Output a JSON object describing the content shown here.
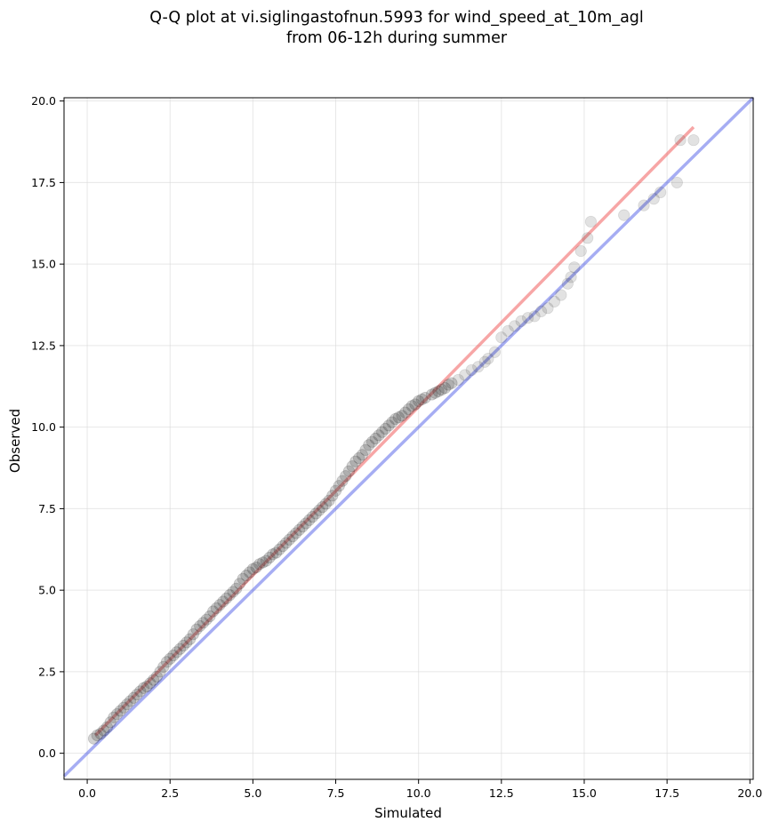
{
  "chart_data": {
    "type": "scatter",
    "title": "Q-Q plot at vi.siglingastofnun.5993 for wind_speed_at_10m_agl",
    "subtitle": "from 06-12h during summer",
    "xlabel": "Simulated",
    "ylabel": "Observed",
    "xlim": [
      -0.7,
      20.1
    ],
    "ylim": [
      -0.8,
      20.1
    ],
    "grid": true,
    "xticks": [
      {
        "value": 0.0,
        "label": "0.0"
      },
      {
        "value": 2.5,
        "label": "2.5"
      },
      {
        "value": 5.0,
        "label": "5.0"
      },
      {
        "value": 7.5,
        "label": "7.5"
      },
      {
        "value": 10.0,
        "label": "10.0"
      },
      {
        "value": 12.5,
        "label": "12.5"
      },
      {
        "value": 15.0,
        "label": "15.0"
      },
      {
        "value": 17.5,
        "label": "17.5"
      },
      {
        "value": 20.0,
        "label": "20.0"
      }
    ],
    "yticks": [
      {
        "value": 0.0,
        "label": "0.0"
      },
      {
        "value": 2.5,
        "label": "2.5"
      },
      {
        "value": 5.0,
        "label": "5.0"
      },
      {
        "value": 7.5,
        "label": "7.5"
      },
      {
        "value": 10.0,
        "label": "10.0"
      },
      {
        "value": 12.5,
        "label": "12.5"
      },
      {
        "value": 15.0,
        "label": "15.0"
      },
      {
        "value": 17.5,
        "label": "17.5"
      },
      {
        "value": 20.0,
        "label": "20.0"
      }
    ],
    "colors": {
      "points": "#303030",
      "identity_line": "#4f5ee8",
      "fit_line": "#ee3b3b",
      "grid": "#d8d8d8"
    },
    "identity_line": {
      "x": [
        -0.7,
        20.1
      ],
      "y": [
        -0.7,
        20.1
      ]
    },
    "fit_line": {
      "x": [
        0.25,
        18.3
      ],
      "y": [
        0.55,
        19.2
      ]
    },
    "series": [
      {
        "points": [
          [
            0.2,
            0.45
          ],
          [
            0.3,
            0.55
          ],
          [
            0.4,
            0.6
          ],
          [
            0.5,
            0.7
          ],
          [
            0.6,
            0.8
          ],
          [
            0.7,
            0.95
          ],
          [
            0.8,
            1.1
          ],
          [
            0.9,
            1.2
          ],
          [
            1.0,
            1.3
          ],
          [
            1.1,
            1.4
          ],
          [
            1.2,
            1.5
          ],
          [
            1.3,
            1.6
          ],
          [
            1.4,
            1.7
          ],
          [
            1.5,
            1.8
          ],
          [
            1.6,
            1.9
          ],
          [
            1.7,
            2.0
          ],
          [
            1.8,
            2.05
          ],
          [
            1.9,
            2.15
          ],
          [
            2.0,
            2.25
          ],
          [
            2.1,
            2.35
          ],
          [
            2.2,
            2.5
          ],
          [
            2.3,
            2.65
          ],
          [
            2.4,
            2.8
          ],
          [
            2.5,
            2.9
          ],
          [
            2.6,
            3.0
          ],
          [
            2.7,
            3.1
          ],
          [
            2.8,
            3.2
          ],
          [
            2.9,
            3.3
          ],
          [
            3.0,
            3.4
          ],
          [
            3.1,
            3.5
          ],
          [
            3.2,
            3.65
          ],
          [
            3.3,
            3.8
          ],
          [
            3.4,
            3.9
          ],
          [
            3.5,
            4.0
          ],
          [
            3.6,
            4.1
          ],
          [
            3.7,
            4.2
          ],
          [
            3.8,
            4.35
          ],
          [
            3.9,
            4.45
          ],
          [
            4.0,
            4.55
          ],
          [
            4.1,
            4.65
          ],
          [
            4.2,
            4.75
          ],
          [
            4.3,
            4.85
          ],
          [
            4.4,
            4.95
          ],
          [
            4.5,
            5.05
          ],
          [
            4.6,
            5.2
          ],
          [
            4.7,
            5.35
          ],
          [
            4.8,
            5.45
          ],
          [
            4.9,
            5.55
          ],
          [
            5.0,
            5.65
          ],
          [
            5.1,
            5.7
          ],
          [
            5.2,
            5.8
          ],
          [
            5.3,
            5.85
          ],
          [
            5.4,
            5.9
          ],
          [
            5.5,
            6.0
          ],
          [
            5.6,
            6.1
          ],
          [
            5.7,
            6.15
          ],
          [
            5.8,
            6.25
          ],
          [
            5.9,
            6.35
          ],
          [
            6.0,
            6.45
          ],
          [
            6.1,
            6.55
          ],
          [
            6.2,
            6.65
          ],
          [
            6.3,
            6.75
          ],
          [
            6.4,
            6.85
          ],
          [
            6.5,
            6.95
          ],
          [
            6.6,
            7.05
          ],
          [
            6.7,
            7.15
          ],
          [
            6.8,
            7.25
          ],
          [
            6.9,
            7.35
          ],
          [
            7.0,
            7.45
          ],
          [
            7.1,
            7.55
          ],
          [
            7.2,
            7.65
          ],
          [
            7.3,
            7.75
          ],
          [
            7.4,
            7.9
          ],
          [
            7.5,
            8.05
          ],
          [
            7.6,
            8.2
          ],
          [
            7.7,
            8.35
          ],
          [
            7.8,
            8.5
          ],
          [
            7.9,
            8.65
          ],
          [
            8.0,
            8.8
          ],
          [
            8.1,
            8.95
          ],
          [
            8.2,
            9.05
          ],
          [
            8.3,
            9.15
          ],
          [
            8.4,
            9.3
          ],
          [
            8.5,
            9.45
          ],
          [
            8.6,
            9.55
          ],
          [
            8.7,
            9.65
          ],
          [
            8.8,
            9.75
          ],
          [
            8.9,
            9.85
          ],
          [
            9.0,
            9.95
          ],
          [
            9.1,
            10.05
          ],
          [
            9.2,
            10.15
          ],
          [
            9.3,
            10.25
          ],
          [
            9.4,
            10.3
          ],
          [
            9.5,
            10.35
          ],
          [
            9.6,
            10.45
          ],
          [
            9.7,
            10.55
          ],
          [
            9.8,
            10.65
          ],
          [
            9.9,
            10.7
          ],
          [
            10.0,
            10.8
          ],
          [
            10.1,
            10.85
          ],
          [
            10.2,
            10.9
          ],
          [
            10.4,
            11.0
          ],
          [
            10.5,
            11.05
          ],
          [
            10.6,
            11.1
          ],
          [
            10.7,
            11.15
          ],
          [
            10.8,
            11.2
          ],
          [
            10.9,
            11.3
          ],
          [
            11.0,
            11.35
          ],
          [
            11.2,
            11.45
          ],
          [
            11.4,
            11.6
          ],
          [
            11.6,
            11.75
          ],
          [
            11.8,
            11.85
          ],
          [
            12.0,
            12.0
          ],
          [
            12.1,
            12.1
          ],
          [
            12.3,
            12.3
          ],
          [
            12.5,
            12.75
          ],
          [
            12.7,
            12.95
          ],
          [
            12.9,
            13.1
          ],
          [
            13.1,
            13.25
          ],
          [
            13.3,
            13.35
          ],
          [
            13.5,
            13.4
          ],
          [
            13.7,
            13.55
          ],
          [
            13.9,
            13.65
          ],
          [
            14.1,
            13.85
          ],
          [
            14.3,
            14.05
          ],
          [
            14.5,
            14.4
          ],
          [
            14.6,
            14.6
          ],
          [
            14.7,
            14.9
          ],
          [
            14.9,
            15.4
          ],
          [
            15.1,
            15.8
          ],
          [
            15.2,
            16.3
          ],
          [
            16.2,
            16.5
          ],
          [
            16.8,
            16.8
          ],
          [
            17.1,
            17.0
          ],
          [
            17.3,
            17.2
          ],
          [
            17.8,
            17.5
          ],
          [
            17.9,
            18.8
          ],
          [
            18.3,
            18.8
          ]
        ]
      }
    ]
  }
}
